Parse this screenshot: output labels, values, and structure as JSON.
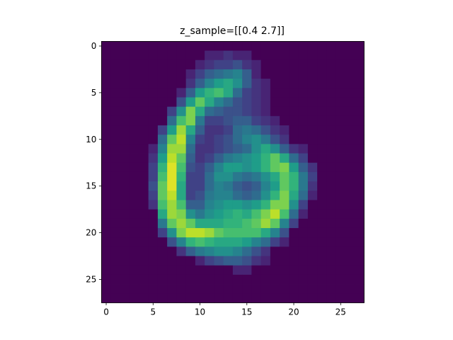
{
  "chart_data": {
    "type": "heatmap",
    "title": "z_sample=[[0.4 2.7]]",
    "colormap": "viridis",
    "vlim": [
      0,
      1
    ],
    "xlim": [
      -0.5,
      27.5
    ],
    "ylim": [
      27.5,
      -0.5
    ],
    "xticks": [
      0,
      5,
      10,
      15,
      20,
      25
    ],
    "yticks": [
      0,
      5,
      10,
      15,
      20,
      25
    ],
    "z": [
      [
        0,
        0,
        0,
        0,
        0,
        0,
        0,
        0,
        0,
        0,
        0,
        0,
        0,
        0,
        0,
        0,
        0,
        0,
        0,
        0,
        0,
        0,
        0,
        0,
        0,
        0,
        0,
        0
      ],
      [
        0,
        0,
        0,
        0,
        0,
        0,
        0,
        0,
        0,
        0,
        0,
        0.1,
        0.1,
        0.15,
        0.1,
        0.1,
        0,
        0,
        0,
        0,
        0,
        0,
        0,
        0,
        0,
        0,
        0,
        0
      ],
      [
        0,
        0,
        0,
        0,
        0,
        0,
        0,
        0,
        0,
        0,
        0.1,
        0.15,
        0.2,
        0.2,
        0.25,
        0.15,
        0.1,
        0,
        0,
        0,
        0,
        0,
        0,
        0,
        0,
        0,
        0,
        0
      ],
      [
        0,
        0,
        0,
        0,
        0,
        0,
        0,
        0,
        0,
        0.1,
        0.2,
        0.3,
        0.35,
        0.4,
        0.45,
        0.3,
        0.1,
        0,
        0,
        0,
        0,
        0,
        0,
        0,
        0,
        0,
        0,
        0
      ],
      [
        0,
        0,
        0,
        0,
        0,
        0,
        0,
        0,
        0,
        0.15,
        0.3,
        0.45,
        0.55,
        0.6,
        0.5,
        0.3,
        0.15,
        0.1,
        0,
        0,
        0,
        0,
        0,
        0,
        0,
        0,
        0,
        0
      ],
      [
        0,
        0,
        0,
        0,
        0,
        0,
        0,
        0,
        0.1,
        0.3,
        0.55,
        0.65,
        0.7,
        0.6,
        0.35,
        0.2,
        0.15,
        0.1,
        0,
        0,
        0,
        0,
        0,
        0,
        0,
        0,
        0,
        0
      ],
      [
        0,
        0,
        0,
        0,
        0,
        0,
        0,
        0,
        0.25,
        0.55,
        0.75,
        0.6,
        0.45,
        0.35,
        0.25,
        0.2,
        0.15,
        0.1,
        0,
        0,
        0,
        0,
        0,
        0,
        0,
        0,
        0,
        0
      ],
      [
        0,
        0,
        0,
        0,
        0,
        0,
        0,
        0.2,
        0.5,
        0.8,
        0.6,
        0.35,
        0.3,
        0.25,
        0.25,
        0.2,
        0.15,
        0.1,
        0,
        0,
        0,
        0,
        0,
        0,
        0,
        0,
        0,
        0
      ],
      [
        0,
        0,
        0,
        0,
        0,
        0,
        0,
        0.35,
        0.7,
        0.8,
        0.4,
        0.2,
        0.2,
        0.25,
        0.3,
        0.3,
        0.2,
        0.15,
        0.1,
        0,
        0,
        0,
        0,
        0,
        0,
        0,
        0,
        0
      ],
      [
        0,
        0,
        0,
        0,
        0,
        0,
        0.2,
        0.55,
        0.85,
        0.6,
        0.3,
        0.15,
        0.15,
        0.2,
        0.35,
        0.4,
        0.35,
        0.25,
        0.15,
        0.1,
        0,
        0,
        0,
        0,
        0,
        0,
        0,
        0
      ],
      [
        0,
        0,
        0,
        0,
        0,
        0,
        0.35,
        0.75,
        0.9,
        0.45,
        0.2,
        0.15,
        0.2,
        0.25,
        0.35,
        0.45,
        0.5,
        0.4,
        0.25,
        0.15,
        0,
        0,
        0,
        0,
        0,
        0,
        0,
        0
      ],
      [
        0,
        0,
        0,
        0,
        0,
        0.1,
        0.45,
        0.85,
        0.85,
        0.35,
        0.15,
        0.15,
        0.2,
        0.25,
        0.3,
        0.35,
        0.5,
        0.6,
        0.5,
        0.3,
        0.15,
        0.1,
        0,
        0,
        0,
        0,
        0,
        0
      ],
      [
        0,
        0,
        0,
        0,
        0,
        0.15,
        0.55,
        0.9,
        0.75,
        0.3,
        0.15,
        0.2,
        0.3,
        0.4,
        0.45,
        0.5,
        0.55,
        0.65,
        0.75,
        0.6,
        0.35,
        0.2,
        0,
        0,
        0,
        0,
        0,
        0
      ],
      [
        0,
        0,
        0,
        0,
        0,
        0.2,
        0.65,
        0.95,
        0.7,
        0.25,
        0.2,
        0.3,
        0.45,
        0.55,
        0.55,
        0.5,
        0.55,
        0.65,
        0.75,
        0.8,
        0.55,
        0.3,
        0.15,
        0,
        0,
        0,
        0,
        0
      ],
      [
        0,
        0,
        0,
        0,
        0,
        0.2,
        0.7,
        0.95,
        0.65,
        0.2,
        0.2,
        0.35,
        0.5,
        0.5,
        0.4,
        0.35,
        0.4,
        0.5,
        0.6,
        0.75,
        0.65,
        0.4,
        0.2,
        0,
        0,
        0,
        0,
        0
      ],
      [
        0,
        0,
        0,
        0,
        0,
        0.25,
        0.75,
        0.95,
        0.6,
        0.2,
        0.2,
        0.35,
        0.45,
        0.4,
        0.3,
        0.25,
        0.3,
        0.45,
        0.55,
        0.75,
        0.65,
        0.4,
        0.15,
        0,
        0,
        0,
        0,
        0
      ],
      [
        0,
        0,
        0,
        0,
        0,
        0.2,
        0.75,
        0.9,
        0.6,
        0.2,
        0.25,
        0.4,
        0.45,
        0.45,
        0.35,
        0.3,
        0.35,
        0.5,
        0.65,
        0.8,
        0.6,
        0.35,
        0.1,
        0,
        0,
        0,
        0,
        0
      ],
      [
        0,
        0,
        0,
        0,
        0,
        0.15,
        0.7,
        0.85,
        0.7,
        0.3,
        0.3,
        0.45,
        0.5,
        0.55,
        0.55,
        0.5,
        0.55,
        0.65,
        0.8,
        0.8,
        0.5,
        0.2,
        0,
        0,
        0,
        0,
        0,
        0
      ],
      [
        0,
        0,
        0,
        0,
        0,
        0,
        0.6,
        0.85,
        0.8,
        0.5,
        0.4,
        0.5,
        0.55,
        0.6,
        0.65,
        0.6,
        0.7,
        0.8,
        0.9,
        0.7,
        0.35,
        0.1,
        0,
        0,
        0,
        0,
        0,
        0
      ],
      [
        0,
        0,
        0,
        0,
        0,
        0,
        0.4,
        0.75,
        0.85,
        0.75,
        0.6,
        0.6,
        0.6,
        0.65,
        0.65,
        0.7,
        0.75,
        0.85,
        0.75,
        0.45,
        0.2,
        0,
        0,
        0,
        0,
        0,
        0,
        0
      ],
      [
        0,
        0,
        0,
        0,
        0,
        0,
        0.2,
        0.5,
        0.8,
        0.9,
        0.9,
        0.85,
        0.75,
        0.7,
        0.7,
        0.7,
        0.7,
        0.6,
        0.45,
        0.25,
        0,
        0,
        0,
        0,
        0,
        0,
        0,
        0
      ],
      [
        0,
        0,
        0,
        0,
        0,
        0,
        0,
        0.25,
        0.45,
        0.65,
        0.7,
        0.65,
        0.6,
        0.6,
        0.6,
        0.55,
        0.45,
        0.35,
        0.2,
        0.1,
        0,
        0,
        0,
        0,
        0,
        0,
        0,
        0
      ],
      [
        0,
        0,
        0,
        0,
        0,
        0,
        0,
        0,
        0.15,
        0.3,
        0.4,
        0.45,
        0.5,
        0.5,
        0.45,
        0.35,
        0.25,
        0.15,
        0,
        0,
        0,
        0,
        0,
        0,
        0,
        0,
        0,
        0
      ],
      [
        0,
        0,
        0,
        0,
        0,
        0,
        0,
        0,
        0,
        0,
        0.1,
        0.2,
        0.25,
        0.3,
        0.3,
        0.25,
        0.15,
        0.1,
        0,
        0,
        0,
        0,
        0,
        0,
        0,
        0,
        0,
        0
      ],
      [
        0,
        0,
        0,
        0,
        0,
        0,
        0,
        0,
        0,
        0,
        0,
        0,
        0,
        0,
        0.1,
        0.1,
        0,
        0,
        0,
        0,
        0,
        0,
        0,
        0,
        0,
        0,
        0,
        0
      ],
      [
        0,
        0,
        0,
        0,
        0,
        0,
        0,
        0,
        0,
        0,
        0,
        0,
        0,
        0,
        0,
        0,
        0,
        0,
        0,
        0,
        0,
        0,
        0,
        0,
        0,
        0,
        0,
        0
      ],
      [
        0,
        0,
        0,
        0,
        0,
        0,
        0,
        0,
        0,
        0,
        0,
        0,
        0,
        0,
        0,
        0,
        0,
        0,
        0,
        0,
        0,
        0,
        0,
        0,
        0,
        0,
        0,
        0
      ],
      [
        0,
        0,
        0,
        0,
        0,
        0,
        0,
        0,
        0,
        0,
        0,
        0,
        0,
        0,
        0,
        0,
        0,
        0,
        0,
        0,
        0,
        0,
        0,
        0,
        0,
        0,
        0,
        0
      ]
    ]
  }
}
